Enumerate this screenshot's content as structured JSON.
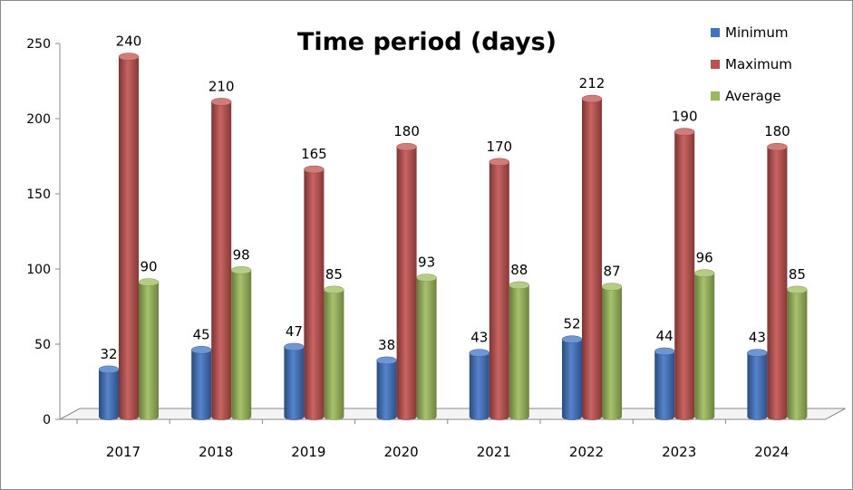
{
  "chart_data": {
    "type": "bar",
    "title": "Time period (days)",
    "xlabel": "",
    "ylabel": "",
    "ylim": [
      0,
      250
    ],
    "yticks": [
      0,
      50,
      100,
      150,
      200,
      250
    ],
    "categories": [
      "2017",
      "2018",
      "2019",
      "2020",
      "2021",
      "2022",
      "2023",
      "2024"
    ],
    "series": [
      {
        "name": "Minimum",
        "color": "#3f73c4",
        "values": [
          32,
          45,
          47,
          38,
          43,
          52,
          44,
          43
        ]
      },
      {
        "name": "Maximum",
        "color": "#c0504d",
        "values": [
          240,
          210,
          165,
          180,
          170,
          212,
          190,
          180
        ]
      },
      {
        "name": "Average",
        "color": "#9bbb59",
        "values": [
          90,
          98,
          85,
          93,
          88,
          87,
          96,
          85
        ]
      }
    ],
    "legend_position": "top-right",
    "data_labels": true,
    "grid": false
  }
}
